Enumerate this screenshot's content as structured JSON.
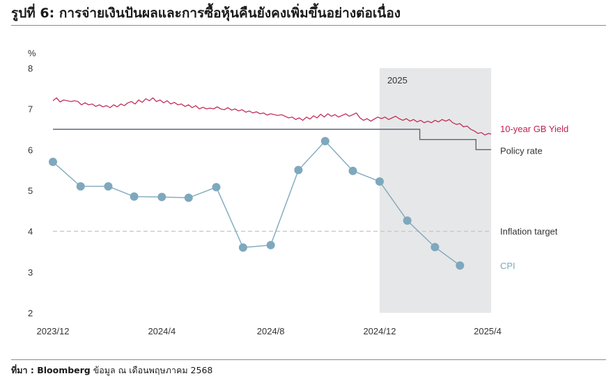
{
  "page": {
    "title": "รูปที่ 6: การจ่ายเงินปันผลและการซื้อหุ้นคืนยังคงเพิ่มขึ้นอย่างต่อเนื่อง",
    "source_prefix": "ที่มา : Bloomberg",
    "source_rest": " ข้อมูล ณ เดือนพฤษภาคม 2568"
  },
  "chart_data": {
    "type": "line",
    "title": "รูปที่ 6: การจ่ายเงินปันผลและการซื้อหุ้นคืนยังคงเพิ่มขึ้นอย่างต่อเนื่อง",
    "ylabel": "%",
    "xlabel": "",
    "ylim": [
      2,
      8
    ],
    "yticks": [
      "2",
      "3",
      "4",
      "5",
      "6",
      "7",
      "8"
    ],
    "xlim": [
      "2023-12-01",
      "2025-04-01"
    ],
    "xticks": [
      {
        "date": "2023-12-01",
        "label": "2023/12"
      },
      {
        "date": "2024-04-01",
        "label": "2024/4"
      },
      {
        "date": "2024-08-01",
        "label": "2024/8"
      },
      {
        "date": "2024-12-01",
        "label": "2024/12"
      },
      {
        "date": "2025-04-01",
        "label": "2025/4"
      }
    ],
    "grid": false,
    "shaded_region": {
      "label": "2025",
      "start": "2024-12-01",
      "end": "2025-04-05",
      "color": "#e6e7e8"
    },
    "series": [
      {
        "name": "10-year GB Yield",
        "color": "#c0214e",
        "style": "line",
        "points": [
          [
            "2023-12-01",
            7.2
          ],
          [
            "2023-12-05",
            7.27
          ],
          [
            "2023-12-09",
            7.17
          ],
          [
            "2023-12-13",
            7.22
          ],
          [
            "2023-12-17",
            7.2
          ],
          [
            "2023-12-21",
            7.18
          ],
          [
            "2023-12-25",
            7.2
          ],
          [
            "2023-12-29",
            7.18
          ],
          [
            "2024-01-02",
            7.1
          ],
          [
            "2024-01-06",
            7.15
          ],
          [
            "2024-01-10",
            7.1
          ],
          [
            "2024-01-14",
            7.12
          ],
          [
            "2024-01-18",
            7.06
          ],
          [
            "2024-01-22",
            7.1
          ],
          [
            "2024-01-26",
            7.05
          ],
          [
            "2024-01-30",
            7.08
          ],
          [
            "2024-02-03",
            7.03
          ],
          [
            "2024-02-07",
            7.1
          ],
          [
            "2024-02-11",
            7.05
          ],
          [
            "2024-02-15",
            7.12
          ],
          [
            "2024-02-19",
            7.08
          ],
          [
            "2024-02-23",
            7.15
          ],
          [
            "2024-02-27",
            7.18
          ],
          [
            "2024-03-02",
            7.12
          ],
          [
            "2024-03-06",
            7.22
          ],
          [
            "2024-03-10",
            7.16
          ],
          [
            "2024-03-14",
            7.25
          ],
          [
            "2024-03-18",
            7.2
          ],
          [
            "2024-03-22",
            7.27
          ],
          [
            "2024-03-26",
            7.18
          ],
          [
            "2024-03-30",
            7.22
          ],
          [
            "2024-04-03",
            7.15
          ],
          [
            "2024-04-07",
            7.2
          ],
          [
            "2024-04-11",
            7.12
          ],
          [
            "2024-04-15",
            7.16
          ],
          [
            "2024-04-19",
            7.1
          ],
          [
            "2024-04-23",
            7.12
          ],
          [
            "2024-04-27",
            7.06
          ],
          [
            "2024-05-01",
            7.1
          ],
          [
            "2024-05-05",
            7.03
          ],
          [
            "2024-05-09",
            7.08
          ],
          [
            "2024-05-13",
            7.0
          ],
          [
            "2024-05-17",
            7.04
          ],
          [
            "2024-05-21",
            7.0
          ],
          [
            "2024-05-25",
            7.02
          ],
          [
            "2024-05-29",
            7.0
          ],
          [
            "2024-06-02",
            7.05
          ],
          [
            "2024-06-06",
            7.0
          ],
          [
            "2024-06-10",
            6.98
          ],
          [
            "2024-06-14",
            7.03
          ],
          [
            "2024-06-18",
            6.97
          ],
          [
            "2024-06-22",
            7.0
          ],
          [
            "2024-06-26",
            6.95
          ],
          [
            "2024-06-30",
            6.98
          ],
          [
            "2024-07-04",
            6.92
          ],
          [
            "2024-07-08",
            6.95
          ],
          [
            "2024-07-12",
            6.9
          ],
          [
            "2024-07-16",
            6.93
          ],
          [
            "2024-07-20",
            6.88
          ],
          [
            "2024-07-24",
            6.9
          ],
          [
            "2024-07-28",
            6.85
          ],
          [
            "2024-08-01",
            6.88
          ],
          [
            "2024-08-05",
            6.86
          ],
          [
            "2024-08-09",
            6.84
          ],
          [
            "2024-08-13",
            6.86
          ],
          [
            "2024-08-17",
            6.82
          ],
          [
            "2024-08-21",
            6.78
          ],
          [
            "2024-08-25",
            6.8
          ],
          [
            "2024-08-29",
            6.74
          ],
          [
            "2024-09-02",
            6.78
          ],
          [
            "2024-09-06",
            6.72
          ],
          [
            "2024-09-10",
            6.8
          ],
          [
            "2024-09-14",
            6.75
          ],
          [
            "2024-09-18",
            6.83
          ],
          [
            "2024-09-22",
            6.78
          ],
          [
            "2024-09-26",
            6.87
          ],
          [
            "2024-09-30",
            6.8
          ],
          [
            "2024-10-04",
            6.88
          ],
          [
            "2024-10-08",
            6.82
          ],
          [
            "2024-10-12",
            6.86
          ],
          [
            "2024-10-16",
            6.8
          ],
          [
            "2024-10-20",
            6.84
          ],
          [
            "2024-10-24",
            6.88
          ],
          [
            "2024-10-28",
            6.82
          ],
          [
            "2024-11-01",
            6.86
          ],
          [
            "2024-11-05",
            6.9
          ],
          [
            "2024-11-09",
            6.78
          ],
          [
            "2024-11-13",
            6.72
          ],
          [
            "2024-11-17",
            6.76
          ],
          [
            "2024-11-21",
            6.7
          ],
          [
            "2024-11-25",
            6.75
          ],
          [
            "2024-11-29",
            6.8
          ],
          [
            "2024-12-03",
            6.76
          ],
          [
            "2024-12-07",
            6.8
          ],
          [
            "2024-12-11",
            6.74
          ],
          [
            "2024-12-15",
            6.78
          ],
          [
            "2024-12-19",
            6.82
          ],
          [
            "2024-12-23",
            6.76
          ],
          [
            "2024-12-27",
            6.72
          ],
          [
            "2024-12-31",
            6.76
          ],
          [
            "2025-01-04",
            6.7
          ],
          [
            "2025-01-08",
            6.74
          ],
          [
            "2025-01-12",
            6.68
          ],
          [
            "2025-01-16",
            6.72
          ],
          [
            "2025-01-20",
            6.66
          ],
          [
            "2025-01-24",
            6.7
          ],
          [
            "2025-01-28",
            6.66
          ],
          [
            "2025-02-01",
            6.72
          ],
          [
            "2025-02-05",
            6.68
          ],
          [
            "2025-02-09",
            6.74
          ],
          [
            "2025-02-13",
            6.7
          ],
          [
            "2025-02-17",
            6.74
          ],
          [
            "2025-02-21",
            6.66
          ],
          [
            "2025-02-25",
            6.62
          ],
          [
            "2025-03-01",
            6.64
          ],
          [
            "2025-03-05",
            6.56
          ],
          [
            "2025-03-09",
            6.58
          ],
          [
            "2025-03-13",
            6.5
          ],
          [
            "2025-03-17",
            6.46
          ],
          [
            "2025-03-21",
            6.4
          ],
          [
            "2025-03-25",
            6.42
          ],
          [
            "2025-03-29",
            6.36
          ],
          [
            "2025-04-02",
            6.4
          ],
          [
            "2025-04-05",
            6.38
          ]
        ]
      },
      {
        "name": "Policy rate",
        "color": "#5b6670",
        "style": "step",
        "points": [
          [
            "2023-12-01",
            6.5
          ],
          [
            "2025-01-15",
            6.5
          ],
          [
            "2025-01-15",
            6.25
          ],
          [
            "2025-03-19",
            6.25
          ],
          [
            "2025-03-19",
            6.0
          ],
          [
            "2025-04-05",
            6.0
          ]
        ]
      },
      {
        "name": "Inflation target",
        "color": "#c8c8c8",
        "style": "dashed",
        "points": [
          [
            "2023-12-01",
            4.0
          ],
          [
            "2025-04-05",
            4.0
          ]
        ]
      },
      {
        "name": "CPI",
        "color": "#7ea8bd",
        "style": "line-markers",
        "points": [
          [
            "2023-12-01",
            5.7
          ],
          [
            "2024-01-01",
            5.1
          ],
          [
            "2024-02-01",
            5.1
          ],
          [
            "2024-03-01",
            4.85
          ],
          [
            "2024-04-01",
            4.84
          ],
          [
            "2024-05-01",
            4.82
          ],
          [
            "2024-06-01",
            5.08
          ],
          [
            "2024-07-01",
            3.6
          ],
          [
            "2024-08-01",
            3.66
          ],
          [
            "2024-09-01",
            5.5
          ],
          [
            "2024-10-01",
            6.21
          ],
          [
            "2024-11-01",
            5.48
          ],
          [
            "2024-12-01",
            5.22
          ],
          [
            "2025-01-01",
            4.26
          ],
          [
            "2025-02-01",
            3.61
          ],
          [
            "2025-03-01",
            3.16
          ]
        ]
      }
    ]
  }
}
